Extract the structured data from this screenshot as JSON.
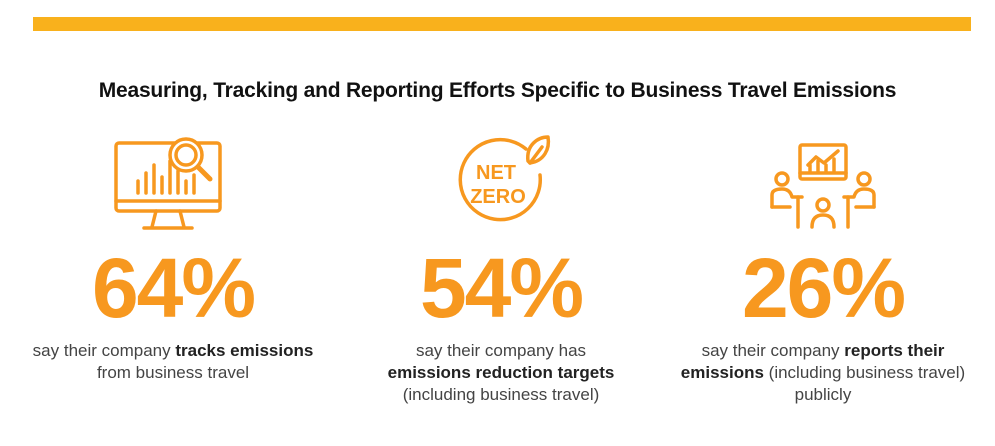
{
  "title": "Measuring, Tracking and Reporting Efforts Specific to Business Travel Emissions",
  "colors": {
    "accent": "#F9B11C",
    "stat_orange": "#F7981F",
    "text": "#444444"
  },
  "stats": [
    {
      "icon": "monitor-analytics-icon",
      "value": "64%",
      "desc": [
        {
          "text": "say their company ",
          "bold": false
        },
        {
          "text": "tracks emissions",
          "bold": true
        },
        {
          "text": " from business travel",
          "bold": false
        }
      ]
    },
    {
      "icon": "net-zero-leaf-icon",
      "icon_text_1": "NET",
      "icon_text_2": "ZERO",
      "value": "54%",
      "desc": [
        {
          "text": "say their company has ",
          "bold": false
        },
        {
          "text": "emissions reduction targets",
          "bold": true
        },
        {
          "text": " (including business travel)",
          "bold": false
        }
      ]
    },
    {
      "icon": "meeting-presentation-icon",
      "value": "26%",
      "desc": [
        {
          "text": "say their company ",
          "bold": false
        },
        {
          "text": "reports their emissions",
          "bold": true
        },
        {
          "text": " (including business travel) publicly",
          "bold": false
        }
      ]
    }
  ]
}
